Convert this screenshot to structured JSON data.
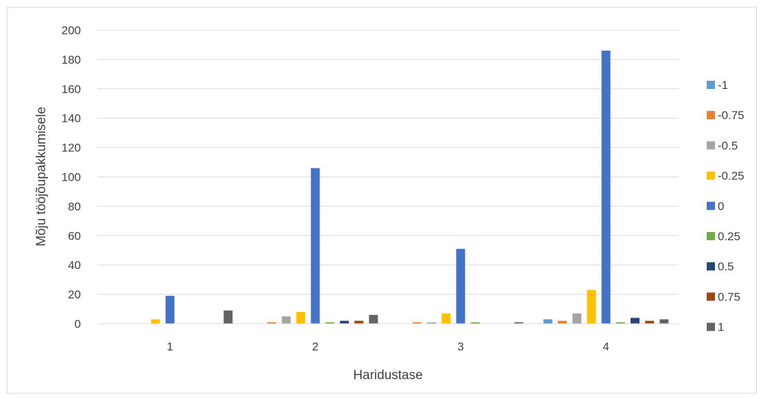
{
  "chart_data": {
    "type": "bar",
    "title": "",
    "xlabel": "Haridustase",
    "ylabel": "Mõju tööjõupakkumisele",
    "ylim": [
      0,
      200
    ],
    "yticks": [
      0,
      20,
      40,
      60,
      80,
      100,
      120,
      140,
      160,
      180,
      200
    ],
    "grid": true,
    "legend_position": "right",
    "categories": [
      "1",
      "2",
      "3",
      "4"
    ],
    "series": [
      {
        "name": "-1",
        "color": "#5b9bd5",
        "values": [
          0,
          0,
          0,
          3
        ]
      },
      {
        "name": "-0.75",
        "color": "#ed7d31",
        "values": [
          0,
          1,
          1,
          2
        ]
      },
      {
        "name": "-0.5",
        "color": "#a5a5a5",
        "values": [
          0,
          5,
          1,
          7
        ]
      },
      {
        "name": "-0.25",
        "color": "#ffc000",
        "values": [
          3,
          8,
          7,
          23
        ]
      },
      {
        "name": "0",
        "color": "#4472c4",
        "values": [
          19,
          106,
          51,
          186
        ]
      },
      {
        "name": "0.25",
        "color": "#70ad47",
        "values": [
          0,
          1,
          1,
          1
        ]
      },
      {
        "name": "0.5",
        "color": "#264478",
        "values": [
          0,
          2,
          0,
          4
        ]
      },
      {
        "name": "0.75",
        "color": "#9e480e",
        "values": [
          0,
          2,
          0,
          2
        ]
      },
      {
        "name": "1",
        "color": "#636363",
        "values": [
          9,
          6,
          1,
          3
        ]
      }
    ]
  }
}
